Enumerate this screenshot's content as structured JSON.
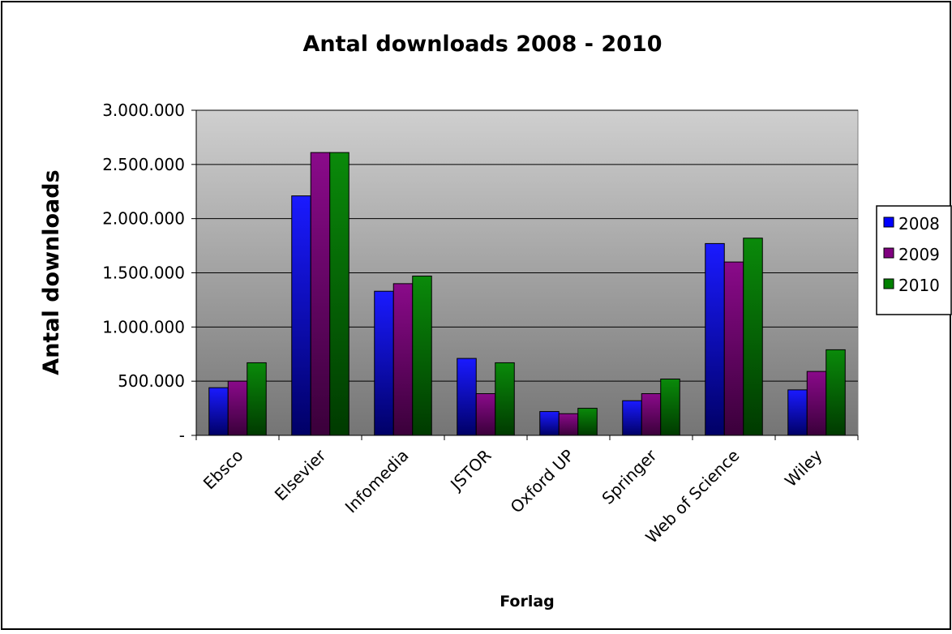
{
  "chart_data": {
    "type": "bar",
    "title": "Antal downloads 2008 - 2010",
    "xlabel": "Forlag",
    "ylabel": "Antal downloads",
    "categories": [
      "Ebsco",
      "Elsevier",
      "Infomedia",
      "JSTOR",
      "Oxford UP",
      "Springer",
      "Web of Science",
      "Wiley"
    ],
    "series": [
      {
        "name": "2008",
        "color": "#0000ff",
        "values": [
          440000,
          2210000,
          1330000,
          710000,
          220000,
          320000,
          1770000,
          420000
        ]
      },
      {
        "name": "2009",
        "color": "#800080",
        "values": [
          500000,
          2610000,
          1400000,
          385000,
          200000,
          385000,
          1600000,
          590000
        ]
      },
      {
        "name": "2010",
        "color": "#008000",
        "values": [
          670000,
          2610000,
          1470000,
          670000,
          250000,
          520000,
          1820000,
          790000
        ]
      }
    ],
    "ylim": [
      0,
      3000000
    ],
    "y_ticks": [
      {
        "value": 0,
        "label": "-"
      },
      {
        "value": 500000,
        "label": "500.000"
      },
      {
        "value": 1000000,
        "label": "1.000.000"
      },
      {
        "value": 1500000,
        "label": "1.500.000"
      },
      {
        "value": 2000000,
        "label": "2.000.000"
      },
      {
        "value": 2500000,
        "label": "2.500.000"
      },
      {
        "value": 3000000,
        "label": "3.000.000"
      }
    ],
    "grid": true,
    "legend_position": "right"
  }
}
